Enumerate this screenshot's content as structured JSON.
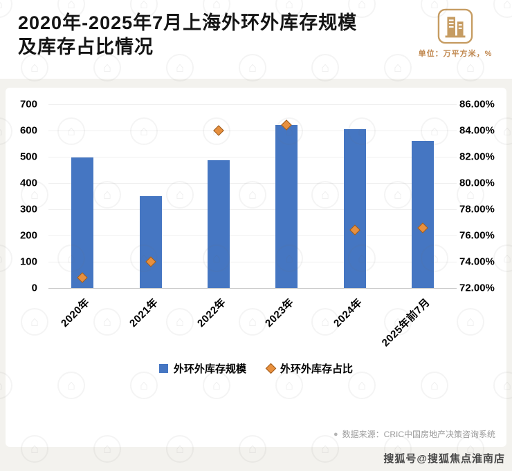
{
  "header": {
    "title_line1": "2020年-2025年7月上海外环外库存规模",
    "title_line2": "及库存占比情况",
    "unit_label": "单位：万平方米，%"
  },
  "chart_data": {
    "type": "combo-bar-scatter",
    "title": "2020年-2025年7月上海外环外库存规模及库存占比情况",
    "categories": [
      "2020年",
      "2021年",
      "2022年",
      "2023年",
      "2024年",
      "2025年前7月"
    ],
    "series": [
      {
        "name": "外环外库存规模",
        "type": "bar",
        "axis": "left",
        "color": "#4576C2",
        "values": [
          497,
          350,
          488,
          620,
          605,
          560
        ]
      },
      {
        "name": "外环外库存占比",
        "type": "scatter",
        "marker": "diamond",
        "axis": "right",
        "color": "#E8903E",
        "marker_border": "#9d5a1c",
        "values": [
          72.8,
          74.0,
          84.0,
          84.4,
          76.4,
          76.6
        ]
      }
    ],
    "left_axis": {
      "min": 0,
      "max": 700,
      "step": 100,
      "ticks": [
        "0",
        "100",
        "200",
        "300",
        "400",
        "500",
        "600",
        "700"
      ]
    },
    "right_axis": {
      "min": 72,
      "max": 86,
      "step": 2,
      "ticks": [
        "72.00%",
        "74.00%",
        "76.00%",
        "78.00%",
        "80.00%",
        "82.00%",
        "84.00%",
        "86.00%"
      ]
    },
    "grid": true,
    "legend_position": "bottom"
  },
  "footer": {
    "source_bullet": "●",
    "source": "数据来源：CRIC中国房地产决策咨询系统",
    "watermark": "搜狐号@搜狐焦点淮南店"
  }
}
